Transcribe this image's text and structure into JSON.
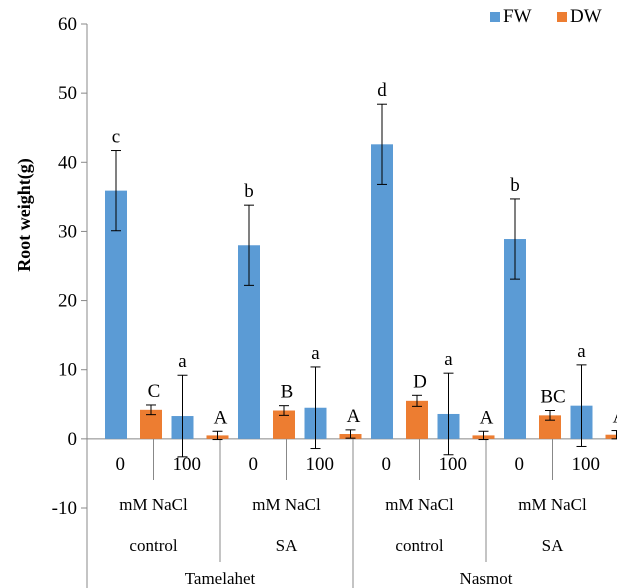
{
  "chart_data": {
    "type": "bar",
    "ylabel": "Root weight(g)",
    "ylim": [
      -10,
      60
    ],
    "yticks": [
      -10,
      0,
      10,
      20,
      30,
      40,
      50,
      60
    ],
    "legend_position": "top-right",
    "categories": [
      {
        "treatment": "0",
        "unit": "mM NaCl",
        "condition": "control",
        "cultivar": "Tamelahet"
      },
      {
        "treatment": "100",
        "unit": "mM NaCl",
        "condition": "control",
        "cultivar": "Tamelahet"
      },
      {
        "treatment": "0",
        "unit": "mM NaCl",
        "condition": "SA",
        "cultivar": "Tamelahet"
      },
      {
        "treatment": "100",
        "unit": "mM NaCl",
        "condition": "SA",
        "cultivar": "Tamelahet"
      },
      {
        "treatment": "0",
        "unit": "mM NaCl",
        "condition": "control",
        "cultivar": "Nasmot"
      },
      {
        "treatment": "100",
        "unit": "mM NaCl",
        "condition": "control",
        "cultivar": "Nasmot"
      },
      {
        "treatment": "0",
        "unit": "mM NaCl",
        "condition": "SA",
        "cultivar": "Nasmot"
      },
      {
        "treatment": "100",
        "unit": "mM NaCl",
        "condition": "SA",
        "cultivar": "Nasmot"
      }
    ],
    "group_labels": {
      "unit": [
        "mM NaCl",
        "mM NaCl",
        "mM NaCl",
        "mM NaCl"
      ],
      "condition": [
        "control",
        "SA",
        "control",
        "SA"
      ],
      "cultivar": [
        "Tamelahet",
        "Nasmot"
      ]
    },
    "series": [
      {
        "name": "FW",
        "color": "#5B9BD5",
        "values": [
          35.9,
          3.3,
          28.0,
          4.5,
          42.6,
          3.6,
          28.9,
          4.8
        ],
        "errors": [
          5.8,
          5.9,
          5.8,
          5.9,
          5.8,
          5.9,
          5.8,
          5.9
        ],
        "letters": [
          "c",
          "a",
          "b",
          "a",
          "d",
          "a",
          "b",
          "a"
        ]
      },
      {
        "name": "DW",
        "color": "#ED7D31",
        "values": [
          4.2,
          0.5,
          4.1,
          0.7,
          5.5,
          0.5,
          3.4,
          0.6
        ],
        "errors": [
          0.7,
          0.6,
          0.7,
          0.6,
          0.8,
          0.6,
          0.7,
          0.6
        ],
        "letters": [
          "C",
          "A",
          "B",
          "A",
          "D",
          "A",
          "BC",
          "A"
        ]
      }
    ]
  }
}
